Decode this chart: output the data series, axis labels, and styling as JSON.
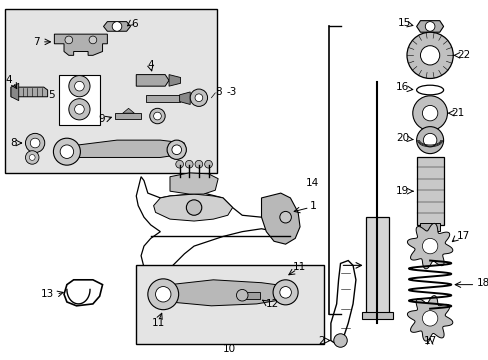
{
  "bg_color": "#ffffff",
  "box1_shade": "#e8e8e8",
  "box2_shade": "#e0e0e0",
  "lc": "#000000",
  "pc": "#b0b0b0",
  "fs": 7.5
}
